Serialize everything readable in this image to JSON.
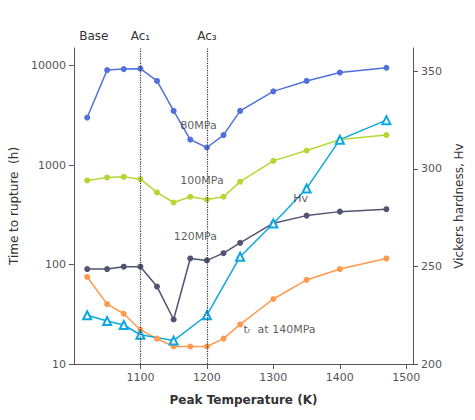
{
  "chart_data": {
    "type": "line",
    "xlabel": "Peak Temperature (K)",
    "ylabel": "Time to rupture  (h)",
    "y2label": "Vickers hardness, Hv",
    "log": "y",
    "grid": false,
    "xlim": [
      1000,
      1510
    ],
    "xticks": [
      1100,
      1200,
      1300,
      1400,
      1500
    ],
    "ylim": [
      10,
      15000
    ],
    "yticks": [
      10,
      100,
      1000,
      10000
    ],
    "y2lim": [
      200,
      362
    ],
    "y2ticks": [
      200,
      250,
      300,
      350
    ],
    "series": [
      {
        "x": [
          1020,
          1050,
          1075,
          1100,
          1125,
          1150,
          1175,
          1200,
          1225,
          1250,
          1300,
          1350,
          1400,
          1470
        ],
        "values": [
          3000,
          9000,
          9200,
          9300,
          7000,
          3500,
          1800,
          1500,
          2000,
          3500,
          5500,
          7000,
          8500,
          9500
        ],
        "marker": "circle",
        "line_style": "solid"
      },
      {
        "x": [
          1020,
          1050,
          1075,
          1100,
          1125,
          1150,
          1175,
          1200,
          1225,
          1250,
          1300,
          1350,
          1400,
          1470
        ],
        "values": [
          700,
          750,
          760,
          720,
          530,
          420,
          480,
          450,
          480,
          680,
          1100,
          1400,
          1800,
          2000
        ],
        "marker": "circle",
        "line_style": "solid"
      },
      {
        "x": [
          1020,
          1050,
          1075,
          1100,
          1125,
          1150,
          1175,
          1200,
          1225,
          1250,
          1300,
          1350,
          1400,
          1470
        ],
        "values": [
          90,
          90,
          95,
          95,
          60,
          28,
          115,
          110,
          130,
          165,
          260,
          310,
          340,
          360
        ],
        "marker": "circle",
        "line_style": "solid"
      },
      {
        "x": [
          1020,
          1050,
          1075,
          1100,
          1125,
          1150,
          1175,
          1200,
          1225,
          1250,
          1300,
          1350,
          1400,
          1470
        ],
        "values": [
          75,
          40,
          32,
          22,
          18,
          15,
          15,
          15,
          18,
          25,
          45,
          70,
          90,
          115
        ],
        "marker": "circle",
        "line_style": "solid"
      },
      {
        "x": [
          1020,
          1050,
          1075,
          1100,
          1150,
          1200,
          1250,
          1300,
          1350,
          1400,
          1470
        ],
        "values": [
          225,
          222,
          220,
          215,
          212,
          225,
          255,
          272,
          290,
          315,
          325
        ],
        "marker": "open-triangle",
        "line_style": "solid",
        "axis": "y2"
      }
    ],
    "annotations": [
      {
        "text": "80MPa",
        "x": 1160,
        "y": 2500
      },
      {
        "text": "100MPa",
        "x": 1160,
        "y": 700
      },
      {
        "text": "120MPa",
        "x": 1150,
        "y": 190
      },
      {
        "text": "tᵣ  at 140MPa",
        "x": 1255,
        "y": 22
      },
      {
        "text": "Hv",
        "x": 1330,
        "y": 285,
        "axis": "y2"
      }
    ],
    "top_labels": [
      {
        "text": "Base",
        "x": 1030
      },
      {
        "text": "Ac₁",
        "x": 1100
      },
      {
        "text": "Ac₃",
        "x": 1200
      }
    ],
    "vlines": [
      1100,
      1200
    ]
  }
}
